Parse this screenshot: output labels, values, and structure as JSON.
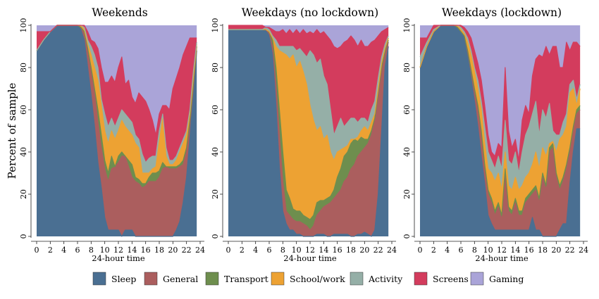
{
  "ylabel": "Percent of sample",
  "chart_data": {
    "type": "area",
    "stacked": true,
    "xlabel": "24-hour time",
    "ylabel": "Percent of sample",
    "xlim": [
      0,
      24
    ],
    "ylim": [
      0,
      100
    ],
    "x_ticks": [
      0,
      2,
      4,
      6,
      8,
      10,
      12,
      14,
      16,
      18,
      20,
      22,
      24
    ],
    "y_ticks": [
      0,
      20,
      40,
      60,
      80,
      100
    ],
    "grid": false,
    "legend_position": "bottom",
    "series_colors": {
      "Sleep": "#4a6f92",
      "General": "#ab5e5e",
      "Transport": "#6e8e4e",
      "School/work": "#eda233",
      "Activity": "#95afa7",
      "Screens": "#d33c5d",
      "Gaming": "#aaa4d8"
    },
    "series_names": [
      "Sleep",
      "General",
      "Transport",
      "School/work",
      "Activity",
      "Screens",
      "Gaming"
    ],
    "panels": [
      {
        "title": "Weekends",
        "x": [
          0,
          1,
          2,
          3,
          4,
          5,
          6,
          6.5,
          7,
          7.5,
          8,
          8.5,
          9,
          9.5,
          10,
          10.5,
          11,
          11.5,
          12,
          12.5,
          13,
          13.5,
          14,
          14.5,
          15,
          15.5,
          16,
          16.5,
          17,
          17.5,
          18,
          18.5,
          19,
          19.5,
          20,
          20.5,
          21,
          21.5,
          22,
          22.5,
          23,
          23.5
        ],
        "cumulative": [
          [
            88,
            93,
            97,
            100,
            100,
            100,
            100,
            98,
            93,
            80,
            67,
            52,
            35,
            23,
            9,
            3,
            3,
            3,
            3,
            0,
            3,
            3,
            3,
            0,
            0,
            0,
            0,
            0,
            0,
            0,
            0,
            0,
            0,
            0,
            0,
            3,
            7,
            16,
            28,
            47,
            68,
            88
          ],
          [
            88,
            93,
            97,
            100,
            100,
            100,
            100,
            99,
            96,
            88,
            78,
            68,
            54,
            42,
            32,
            26,
            32,
            33,
            35,
            38,
            38,
            33,
            28,
            26,
            25,
            23,
            24,
            26,
            26,
            26,
            28,
            32,
            33,
            32,
            32,
            32,
            33,
            34,
            40,
            53,
            70,
            90
          ],
          [
            88,
            93,
            97,
            100,
            100,
            100,
            100,
            99,
            97,
            89,
            80,
            70,
            60,
            48,
            36,
            30,
            38,
            33,
            38,
            40,
            38,
            36,
            34,
            28,
            27,
            25,
            25,
            28,
            30,
            30,
            31,
            35,
            33,
            33,
            33,
            33,
            34,
            36,
            42,
            55,
            72,
            90
          ],
          [
            88,
            93,
            97,
            100,
            100,
            100,
            100,
            100,
            98,
            91,
            86,
            80,
            74,
            62,
            50,
            44,
            50,
            46,
            50,
            55,
            52,
            50,
            48,
            44,
            42,
            30,
            30,
            30,
            32,
            33,
            45,
            56,
            38,
            34,
            34,
            36,
            40,
            44,
            48,
            58,
            75,
            91
          ],
          [
            88,
            93,
            97,
            100,
            100,
            100,
            100,
            100,
            99,
            93,
            90,
            86,
            80,
            65,
            58,
            52,
            56,
            52,
            56,
            60,
            58,
            56,
            54,
            48,
            46,
            39,
            35,
            37,
            38,
            38,
            50,
            58,
            42,
            36,
            36,
            38,
            42,
            46,
            50,
            60,
            78,
            92
          ],
          [
            97,
            97,
            97,
            100,
            100,
            100,
            100,
            100,
            100,
            97,
            93,
            92,
            89,
            80,
            73,
            73,
            76,
            73,
            80,
            85,
            72,
            74,
            66,
            63,
            68,
            66,
            64,
            60,
            55,
            48,
            58,
            62,
            62,
            60,
            70,
            75,
            80,
            86,
            90,
            94,
            94,
            94
          ],
          [
            100,
            100,
            100,
            100,
            100,
            100,
            100,
            100,
            100,
            100,
            100,
            100,
            100,
            100,
            100,
            100,
            100,
            100,
            100,
            100,
            100,
            100,
            100,
            100,
            100,
            100,
            100,
            100,
            100,
            100,
            100,
            100,
            100,
            100,
            100,
            100,
            100,
            100,
            100,
            100,
            100,
            100
          ]
        ]
      },
      {
        "title": "Weekdays (no lockdown)",
        "x": [
          0,
          1,
          2,
          3,
          4,
          5,
          5.5,
          6,
          6.5,
          7,
          7.5,
          8,
          8.5,
          9,
          9.5,
          10,
          10.5,
          11,
          11.5,
          12,
          12.5,
          13,
          13.5,
          14,
          14.5,
          15,
          15.5,
          16,
          16.5,
          17,
          17.5,
          18,
          18.5,
          19,
          19.5,
          20,
          20.5,
          21,
          21.5,
          22,
          22.5,
          23,
          23.5
        ],
        "cumulative": [
          [
            98,
            98,
            98,
            98,
            98,
            98,
            98,
            95,
            86,
            62,
            33,
            12,
            6,
            3,
            3,
            1,
            1,
            0,
            0,
            0,
            0,
            1,
            1,
            1,
            0,
            0,
            1,
            1,
            1,
            1,
            1,
            0,
            0,
            1,
            1,
            2,
            1,
            0,
            3,
            20,
            50,
            80,
            90
          ],
          [
            98,
            98,
            98,
            98,
            98,
            98,
            98,
            96,
            90,
            72,
            48,
            26,
            12,
            10,
            8,
            7,
            7,
            6,
            5,
            3,
            5,
            10,
            12,
            14,
            15,
            16,
            18,
            20,
            22,
            26,
            28,
            32,
            34,
            38,
            40,
            42,
            44,
            48,
            55,
            66,
            78,
            86,
            92
          ],
          [
            98,
            98,
            98,
            98,
            98,
            98,
            98,
            97,
            93,
            80,
            60,
            40,
            22,
            18,
            13,
            12,
            12,
            10,
            9,
            8,
            10,
            16,
            17,
            17,
            18,
            19,
            22,
            28,
            32,
            38,
            40,
            44,
            46,
            45,
            47,
            46,
            46,
            50,
            56,
            68,
            80,
            88,
            93
          ],
          [
            98,
            98,
            98,
            98,
            98,
            98,
            98,
            97,
            94,
            90,
            88,
            87,
            86,
            84,
            86,
            80,
            83,
            78,
            72,
            62,
            55,
            50,
            52,
            46,
            48,
            40,
            36,
            40,
            41,
            42,
            43,
            46,
            46,
            47,
            50,
            52,
            50,
            54,
            58,
            70,
            82,
            89,
            94
          ],
          [
            98,
            98,
            98,
            98,
            98,
            98,
            99,
            98,
            95,
            93,
            90,
            90,
            90,
            90,
            90,
            88,
            89,
            87,
            85,
            88,
            86,
            82,
            84,
            76,
            72,
            60,
            48,
            52,
            56,
            52,
            54,
            56,
            56,
            54,
            56,
            56,
            54,
            60,
            64,
            75,
            85,
            91,
            95
          ],
          [
            100,
            100,
            100,
            100,
            100,
            100,
            99,
            99,
            98,
            97,
            97,
            98,
            96,
            98,
            96,
            98,
            96,
            98,
            96,
            97,
            96,
            98,
            96,
            97,
            95,
            93,
            90,
            89,
            90,
            92,
            93,
            95,
            93,
            90,
            93,
            90,
            90,
            92,
            93,
            95,
            97,
            98,
            99
          ],
          [
            100,
            100,
            100,
            100,
            100,
            100,
            100,
            100,
            100,
            100,
            100,
            100,
            100,
            100,
            100,
            100,
            100,
            100,
            100,
            100,
            100,
            100,
            100,
            100,
            100,
            100,
            100,
            100,
            100,
            100,
            100,
            100,
            100,
            100,
            100,
            100,
            100,
            100,
            100,
            100,
            100,
            100,
            100
          ]
        ]
      },
      {
        "title": "Weekdays (lockdown)",
        "x": [
          0,
          1,
          2,
          3,
          4,
          5,
          5.5,
          6,
          6.5,
          7,
          7.5,
          8,
          8.5,
          9,
          9.5,
          10,
          10.5,
          11,
          11.5,
          12,
          12.5,
          13,
          13.5,
          14,
          14.5,
          15,
          15.5,
          16,
          16.5,
          17,
          17.5,
          18,
          18.5,
          19,
          19.5,
          20,
          20.5,
          21,
          21.5,
          22,
          22.5,
          23,
          23.5
        ],
        "cumulative": [
          [
            80,
            90,
            97,
            100,
            100,
            100,
            99,
            97,
            94,
            86,
            75,
            64,
            52,
            38,
            25,
            10,
            6,
            3,
            3,
            3,
            3,
            3,
            3,
            3,
            3,
            3,
            3,
            3,
            9,
            3,
            3,
            0,
            0,
            0,
            0,
            0,
            3,
            6,
            6,
            25,
            40,
            51,
            51
          ],
          [
            80,
            90,
            97,
            100,
            100,
            100,
            99,
            97,
            95,
            87,
            78,
            68,
            60,
            48,
            32,
            20,
            16,
            10,
            14,
            8,
            30,
            12,
            10,
            16,
            10,
            10,
            16,
            18,
            20,
            22,
            16,
            28,
            22,
            40,
            42,
            28,
            22,
            26,
            32,
            40,
            50,
            58,
            60
          ],
          [
            80,
            90,
            97,
            100,
            100,
            100,
            99,
            97,
            95,
            88,
            79,
            70,
            62,
            50,
            34,
            22,
            18,
            12,
            16,
            10,
            32,
            14,
            12,
            18,
            12,
            12,
            18,
            20,
            22,
            24,
            18,
            30,
            24,
            42,
            44,
            30,
            24,
            28,
            34,
            42,
            52,
            60,
            62
          ],
          [
            80,
            90,
            97,
            100,
            100,
            100,
            100,
            98,
            96,
            92,
            86,
            78,
            70,
            60,
            44,
            32,
            30,
            26,
            30,
            22,
            40,
            24,
            22,
            28,
            22,
            24,
            28,
            30,
            34,
            40,
            32,
            42,
            38,
            44,
            45,
            40,
            46,
            48,
            52,
            68,
            70,
            62,
            70
          ],
          [
            85,
            92,
            98,
            100,
            100,
            100,
            100,
            99,
            97,
            94,
            88,
            80,
            74,
            64,
            52,
            40,
            36,
            32,
            38,
            32,
            55,
            36,
            34,
            40,
            30,
            40,
            48,
            52,
            58,
            64,
            48,
            60,
            56,
            63,
            50,
            48,
            48,
            54,
            58,
            72,
            74,
            65,
            72
          ],
          [
            94,
            94,
            100,
            100,
            100,
            100,
            100,
            100,
            99,
            97,
            94,
            88,
            82,
            74,
            62,
            48,
            40,
            38,
            44,
            42,
            80,
            50,
            42,
            46,
            36,
            55,
            62,
            58,
            76,
            84,
            86,
            85,
            90,
            86,
            90,
            90,
            80,
            80,
            92,
            88,
            92,
            92,
            90
          ],
          [
            100,
            100,
            100,
            100,
            100,
            100,
            100,
            100,
            100,
            100,
            100,
            100,
            100,
            100,
            100,
            100,
            100,
            100,
            100,
            100,
            100,
            100,
            100,
            100,
            100,
            100,
            100,
            100,
            100,
            100,
            100,
            100,
            100,
            100,
            100,
            100,
            100,
            100,
            100,
            100,
            100,
            100,
            100
          ]
        ]
      }
    ]
  }
}
